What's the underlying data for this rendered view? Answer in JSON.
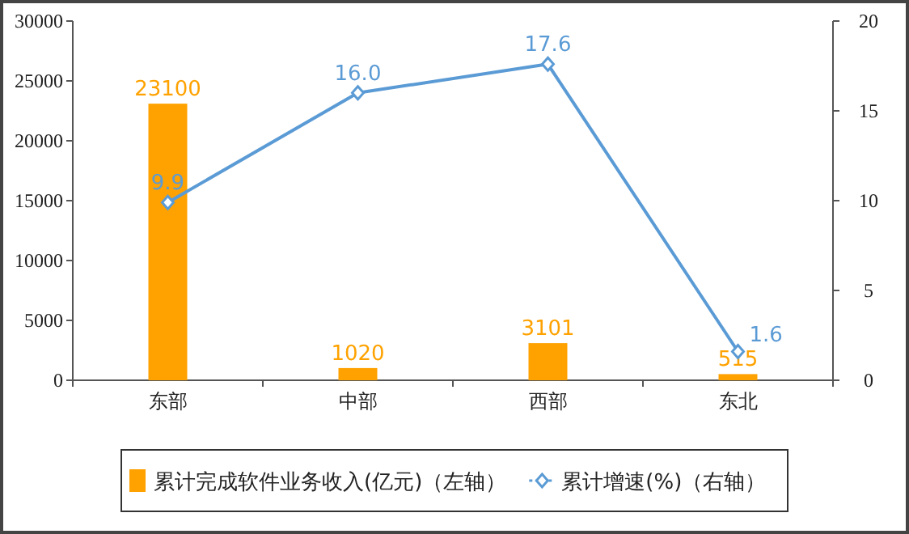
{
  "chart_data": {
    "type": "bar",
    "categories": [
      "东部",
      "中部",
      "西部",
      "东北"
    ],
    "series": [
      {
        "name": "累计完成软件业务收入(亿元)（左轴）",
        "color": "#ffa200",
        "values": [
          23100,
          1020,
          3101,
          515
        ],
        "value_labels": [
          "23100",
          "1020",
          "3101",
          "515"
        ]
      },
      {
        "name": "累计增速(%)（右轴）",
        "type": "line",
        "axis": "y2",
        "color": "#5b9bd5",
        "values": [
          9.9,
          16.0,
          17.6,
          1.6
        ],
        "value_labels": [
          "9.9",
          "16.0",
          "17.6",
          "1.6"
        ]
      }
    ],
    "ylim": [
      0,
      30000
    ],
    "yticks": [
      0,
      5000,
      10000,
      15000,
      20000,
      25000,
      30000
    ],
    "y2lim": [
      0,
      20
    ],
    "y2ticks": [
      0,
      5,
      10,
      15,
      20
    ],
    "marker": "diamond",
    "legend": "bottom",
    "grid": false
  }
}
